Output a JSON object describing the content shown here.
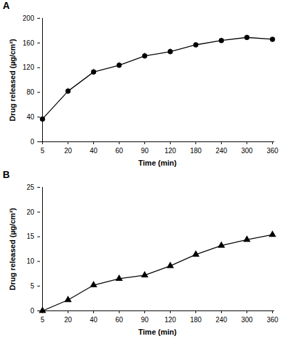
{
  "chart_data": [
    {
      "type": "line",
      "title": "A",
      "x_label": "Time (min)",
      "y_label": "Drug released (µg/cm²)",
      "categories": [
        "5",
        "20",
        "40",
        "60",
        "90",
        "120",
        "180",
        "240",
        "300",
        "360"
      ],
      "series": [
        {
          "name": "A",
          "color": "#000000",
          "marker": "circle",
          "values": [
            37,
            82,
            113,
            124,
            139,
            146,
            157,
            164,
            169,
            166
          ],
          "errors": [
            3,
            5,
            5,
            5,
            5,
            5,
            4,
            4,
            3,
            2
          ]
        }
      ],
      "ylim": [
        0,
        200
      ],
      "yticks": [
        0,
        40,
        80,
        120,
        160,
        200
      ],
      "grid": false
    },
    {
      "type": "line",
      "title": "B",
      "x_label": "Time (min)",
      "y_label": "Drug released (µg/cm²)",
      "categories": [
        "5",
        "20",
        "40",
        "60",
        "90",
        "120",
        "180",
        "240",
        "300",
        "360"
      ],
      "series": [
        {
          "name": "B",
          "color": "#000000",
          "marker": "triangle",
          "values": [
            0,
            2.2,
            5.2,
            6.5,
            7.2,
            9.1,
            11.4,
            13.2,
            14.4,
            15.4
          ],
          "errors": [
            0.1,
            0.2,
            0.2,
            0.3,
            0.3,
            0.4,
            0.3,
            0.3,
            0.3,
            0.2
          ]
        }
      ],
      "ylim": [
        0,
        25
      ],
      "yticks": [
        0,
        5,
        10,
        15,
        20,
        25
      ],
      "grid": false
    }
  ]
}
